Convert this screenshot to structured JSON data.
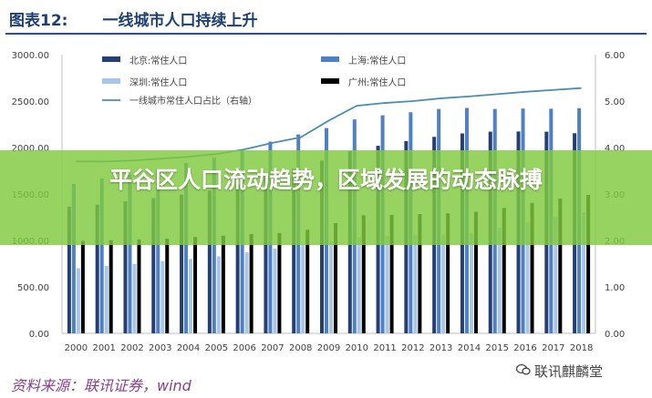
{
  "header": {
    "figure_label": "图表12:",
    "title": "一线城市人口持续上升"
  },
  "banner": {
    "text": "平谷区人口流动趋势，区域发展的动态脉搏"
  },
  "footer": {
    "source": "资料来源：联讯证券，wind",
    "watermark": "联讯麒麟堂",
    "watermark_icon": "wechat-icon"
  },
  "chart_data": {
    "type": "bar",
    "title": "",
    "categories": [
      "2000",
      "2001",
      "2002",
      "2003",
      "2004",
      "2005",
      "2006",
      "2007",
      "2008",
      "2009",
      "2010",
      "2011",
      "2012",
      "2013",
      "2014",
      "2015",
      "2016",
      "2017",
      "2018"
    ],
    "ylim": [
      0,
      3000
    ],
    "y2lim": [
      0,
      6
    ],
    "y_ticks": [
      "0.00",
      "500.00",
      "1000.00",
      "1500.00",
      "2000.00",
      "2500.00",
      "3000.00"
    ],
    "y2_ticks": [
      "0.00",
      "1.00",
      "2.00",
      "3.00",
      "4.00",
      "5.00",
      "6.00"
    ],
    "grid": false,
    "legend_position": "top",
    "series": [
      {
        "name": "北京:常住人口",
        "kind": "bar",
        "axis": "left",
        "color": "#243f73",
        "values": [
          1364,
          1385,
          1423,
          1456,
          1493,
          1538,
          1601,
          1676,
          1771,
          1860,
          1962,
          2019,
          2069,
          2115,
          2152,
          2171,
          2173,
          2171,
          2154
        ]
      },
      {
        "name": "上海:常住人口",
        "kind": "bar",
        "axis": "left",
        "color": "#4f7fc4",
        "values": [
          1609,
          1668,
          1713,
          1766,
          1835,
          1890,
          1964,
          2064,
          2141,
          2210,
          2303,
          2347,
          2380,
          2415,
          2426,
          2415,
          2420,
          2418,
          2424
        ]
      },
      {
        "name": "深圳:常住人口",
        "kind": "bar",
        "axis": "left",
        "color": "#a9c6e9",
        "values": [
          701,
          725,
          747,
          778,
          800,
          828,
          871,
          912,
          954,
          995,
          1037,
          1047,
          1055,
          1063,
          1078,
          1138,
          1191,
          1253,
          1303
        ]
      },
      {
        "name": "广州:常住人口",
        "kind": "bar",
        "axis": "left",
        "color": "#000000",
        "values": [
          995,
          1003,
          1011,
          1019,
          1037,
          1051,
          1068,
          1079,
          1115,
          1187,
          1271,
          1275,
          1284,
          1293,
          1308,
          1350,
          1404,
          1450,
          1490
        ]
      },
      {
        "name": "一线城市常住人口占比（右轴）",
        "kind": "line",
        "axis": "right",
        "color": "#4a8db5",
        "values": [
          3.7,
          3.7,
          3.72,
          3.76,
          3.8,
          3.86,
          3.96,
          4.1,
          4.22,
          4.58,
          4.9,
          4.96,
          5.0,
          5.06,
          5.1,
          5.15,
          5.2,
          5.24,
          5.28
        ]
      }
    ]
  }
}
